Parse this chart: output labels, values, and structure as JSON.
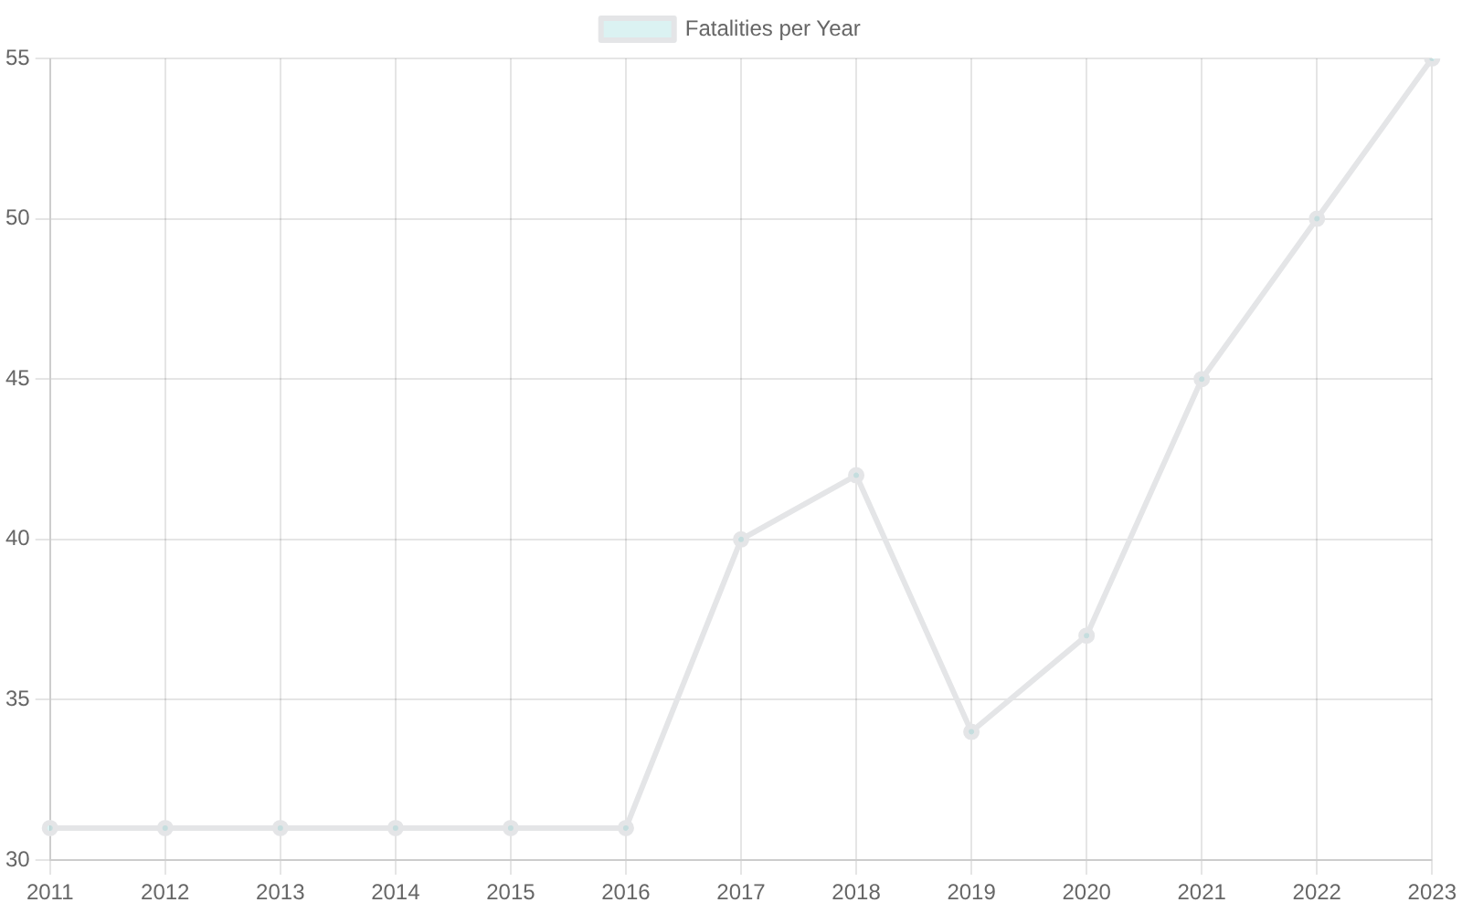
{
  "chart_data": {
    "type": "line",
    "categories": [
      "2011",
      "2012",
      "2013",
      "2014",
      "2015",
      "2016",
      "2017",
      "2018",
      "2019",
      "2020",
      "2021",
      "2022",
      "2023"
    ],
    "series": [
      {
        "name": "Fatalities per Year",
        "color": "#e4e5e7",
        "values": [
          31,
          31,
          31,
          31,
          31,
          31,
          40,
          42,
          34,
          37,
          45,
          50,
          55
        ]
      }
    ],
    "ylim": [
      30,
      55
    ],
    "yticks": [
      30,
      35,
      40,
      45,
      50,
      55
    ],
    "grid": true,
    "legend": "top",
    "marker": "circle",
    "line_style": "solid"
  }
}
